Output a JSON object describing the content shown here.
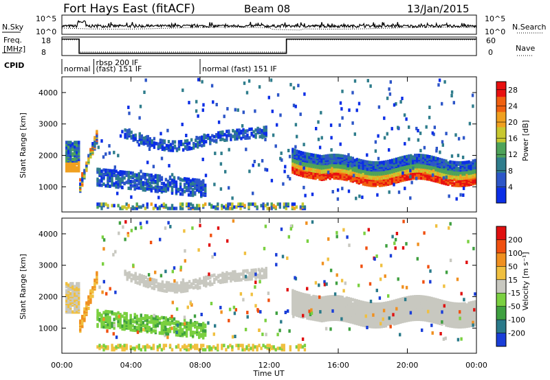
{
  "header": {
    "station": "Fort Hays East (fitACF)",
    "beam": "Beam 08",
    "date": "13/Jan/2015"
  },
  "top_panels": {
    "nsky_label": "N.Sky",
    "nsearch_label": "N.Search",
    "freq_label_1": "Freq.",
    "freq_label_2": "[MHz]",
    "nave_label": "Nave",
    "cpid_label": "CPID",
    "nsky_ticks": [
      "10^5",
      "10^0"
    ],
    "nsearch_ticks": [
      "10^5",
      "10^0"
    ],
    "freq_ticks": [
      "18",
      "8"
    ],
    "nave_ticks": [
      "60",
      "0"
    ],
    "cpid_modes": [
      {
        "label": "normal",
        "start_hour": 0,
        "row": 2
      },
      {
        "label": "rbsp 200 IF",
        "start_hour": 1.85,
        "row": 1
      },
      {
        "label": "(fast) 151 IF",
        "start_hour": 1.85,
        "row": 2
      },
      {
        "label": "normal (fast) 151 IF",
        "start_hour": 8.0,
        "row": 2
      }
    ],
    "nave_series": {
      "x": [
        0,
        1.0,
        1.0,
        13.0,
        13.0,
        24
      ],
      "y": [
        55,
        55,
        8,
        8,
        55,
        55
      ]
    }
  },
  "chart_data": [
    {
      "type": "heatmap",
      "name": "power",
      "ylabel": "Slant Range [km]",
      "yticks": [
        1000,
        2000,
        3000,
        4000
      ],
      "ylim": [
        200,
        4500
      ],
      "xlim": [
        0,
        24
      ],
      "colorbar_label": "Power [dB]",
      "colorbar_ticks": [
        4,
        8,
        12,
        16,
        20,
        24,
        28
      ],
      "colorbar_range": [
        0,
        30
      ],
      "colors": [
        "#0b2ee6",
        "#2d56c8",
        "#2f7d8c",
        "#4ea35a",
        "#c8c830",
        "#f0a020",
        "#f06010",
        "#e81010"
      ]
    },
    {
      "type": "heatmap",
      "name": "velocity",
      "ylabel": "Slant Range [km]",
      "yticks": [
        1000,
        2000,
        3000,
        4000
      ],
      "ylim": [
        200,
        4500
      ],
      "xlim": [
        0,
        24
      ],
      "xticks": [
        "00:00",
        "04:00",
        "08:00",
        "12:00",
        "16:00",
        "20:00",
        "00:00"
      ],
      "xlabel": "Time UT",
      "colorbar_label": "Velocity [m s⁻¹]",
      "colorbar_ticks": [
        "200",
        "100",
        "50",
        "15",
        "-15",
        "-50",
        "-100",
        "-200"
      ],
      "colors": [
        "#1a3ed8",
        "#2a7a8a",
        "#3fa040",
        "#7ad040",
        "#c8c8c0",
        "#f0c040",
        "#f09020",
        "#f05010",
        "#e01010"
      ]
    }
  ]
}
